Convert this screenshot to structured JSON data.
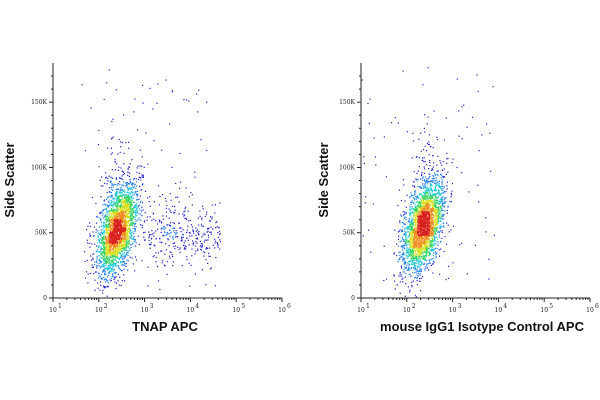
{
  "chart_data": [
    {
      "type": "scatter",
      "plot": "density-dot-plot",
      "xlabel": "TNAP APC",
      "ylabel": "Side Scatter",
      "x_scale": "log",
      "xlim": [
        10,
        1000000
      ],
      "ylim": [
        0,
        180000
      ],
      "x_ticks": [
        {
          "value": 10,
          "base": "10",
          "exp": "1"
        },
        {
          "value": 100,
          "base": "10",
          "exp": "2"
        },
        {
          "value": 1000,
          "base": "10",
          "exp": "3"
        },
        {
          "value": 10000,
          "base": "10",
          "exp": "4"
        },
        {
          "value": 100000,
          "base": "10",
          "exp": "5"
        },
        {
          "value": 1000000,
          "base": "10",
          "exp": "6"
        }
      ],
      "y_ticks": [
        {
          "value": 0,
          "label": "0"
        },
        {
          "value": 50000,
          "label": "50K"
        },
        {
          "value": 100000,
          "label": "100K"
        },
        {
          "value": 150000,
          "label": "150K"
        }
      ],
      "populations": [
        {
          "x_center": 250,
          "y_center": 52000,
          "count": 2600
        },
        {
          "x_center": 4000,
          "y_center": 50000,
          "count": 320
        }
      ],
      "density_colors": [
        "#1e22c8",
        "#1f7fe8",
        "#1fc7d8",
        "#2ed35a",
        "#d8e020",
        "#f08a1e",
        "#d8201e"
      ],
      "grid": false
    },
    {
      "type": "scatter",
      "plot": "density-dot-plot",
      "xlabel": "mouse IgG1 Isotype Control APC",
      "ylabel": "Side Scatter",
      "x_scale": "log",
      "xlim": [
        10,
        1000000
      ],
      "ylim": [
        0,
        180000
      ],
      "x_ticks": [
        {
          "value": 10,
          "base": "10",
          "exp": "1"
        },
        {
          "value": 100,
          "base": "10",
          "exp": "2"
        },
        {
          "value": 1000,
          "base": "10",
          "exp": "3"
        },
        {
          "value": 10000,
          "base": "10",
          "exp": "4"
        },
        {
          "value": 100000,
          "base": "10",
          "exp": "5"
        },
        {
          "value": 1000000,
          "base": "10",
          "exp": "6"
        }
      ],
      "y_ticks": [
        {
          "value": 0,
          "label": "0"
        },
        {
          "value": 50000,
          "label": "50K"
        },
        {
          "value": 100000,
          "label": "100K"
        },
        {
          "value": 150000,
          "label": "150K"
        }
      ],
      "populations": [
        {
          "x_center": 230,
          "y_center": 55000,
          "count": 2600
        }
      ],
      "density_colors": [
        "#1e22c8",
        "#1f7fe8",
        "#1fc7d8",
        "#2ed35a",
        "#d8e020",
        "#f08a1e",
        "#d8201e"
      ],
      "grid": false
    }
  ]
}
